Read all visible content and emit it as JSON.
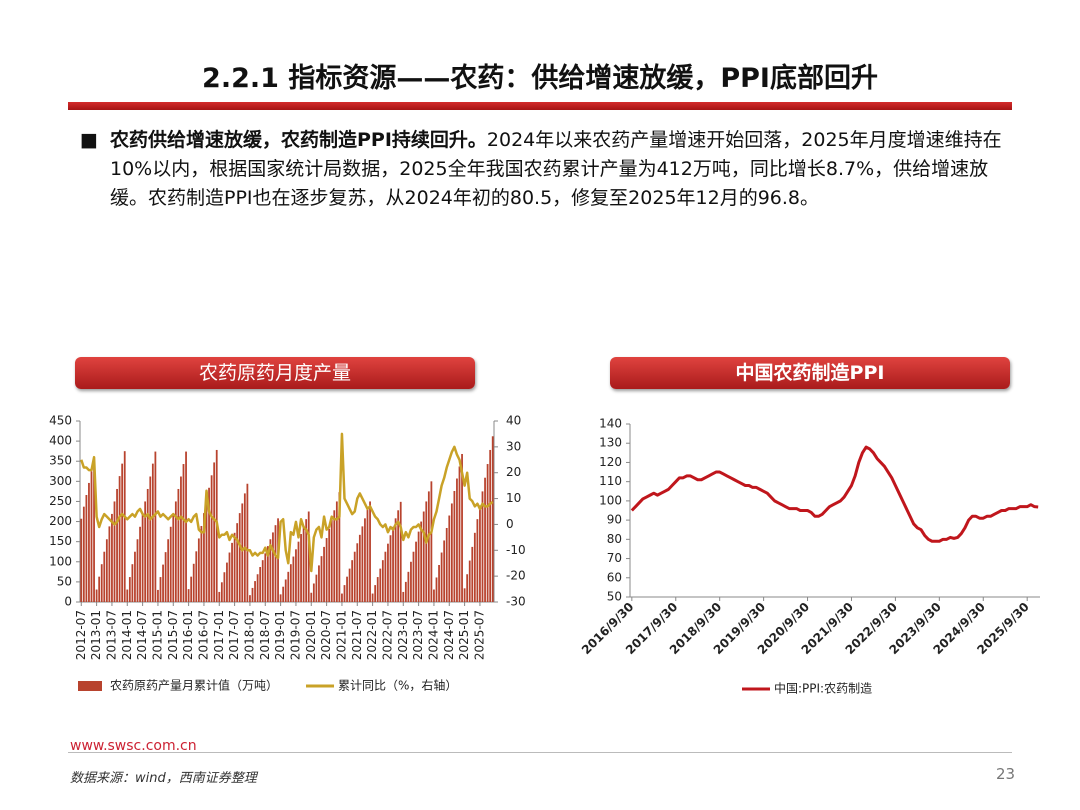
{
  "header": {
    "title": "2.2.1 指标资源——农药：供给增速放缓，PPI底部回升"
  },
  "bullet": {
    "bold": "农药供给增速放缓，农药制造PPI持续回升。",
    "text": "2024年以来农药产量增速开始回落，2025年月度增速维持在10%以内，根据国家统计局数据，2025全年我国农药累计产量为412万吨，同比增长8.7%，供给增速放缓。农药制造PPI也在逐步复苏，从2024年初的80.5，修复至2025年12月的96.8。"
  },
  "chart_data": [
    {
      "type": "combo",
      "title": "农药原药月度产量",
      "categories": [
        "2012-07",
        null,
        null,
        null,
        null,
        null,
        "2013-01",
        null,
        null,
        null,
        null,
        null,
        "2013-07",
        null,
        null,
        null,
        null,
        null,
        "2014-01",
        null,
        null,
        null,
        null,
        null,
        "2014-07",
        null,
        null,
        null,
        null,
        null,
        "2015-01",
        null,
        null,
        null,
        null,
        null,
        "2015-07",
        null,
        null,
        null,
        null,
        null,
        "2016-01",
        null,
        null,
        null,
        null,
        null,
        "2016-07",
        null,
        null,
        null,
        null,
        null,
        "2017-01",
        null,
        null,
        null,
        null,
        null,
        "2017-07",
        null,
        null,
        null,
        null,
        null,
        "2018-01",
        null,
        null,
        null,
        null,
        null,
        "2018-07",
        null,
        null,
        null,
        null,
        null,
        "2019-01",
        null,
        null,
        null,
        null,
        null,
        "2019-07",
        null,
        null,
        null,
        null,
        null,
        "2020-01",
        null,
        null,
        null,
        null,
        null,
        "2020-07",
        null,
        null,
        null,
        null,
        null,
        "2021-01",
        null,
        null,
        null,
        null,
        null,
        "2021-07",
        null,
        null,
        null,
        null,
        null,
        "2022-01",
        null,
        null,
        null,
        null,
        null,
        "2022-07",
        null,
        null,
        null,
        null,
        null,
        "2023-01",
        null,
        null,
        null,
        null,
        null,
        "2023-07",
        null,
        null,
        null,
        null,
        null,
        "2024-01",
        null,
        null,
        null,
        null,
        null,
        "2024-07",
        null,
        null,
        null,
        null,
        null,
        "2025-01",
        null,
        null,
        null,
        null,
        null,
        "2025-07",
        null,
        null,
        null,
        null,
        null
      ],
      "series": [
        {
          "name": "农药原药产量月累计值（万吨）",
          "type": "bar",
          "color": "#b8432e",
          "values": [
            207,
            237,
            266,
            296,
            325,
            355,
            31,
            63,
            94,
            125,
            156,
            188,
            219,
            250,
            281,
            313,
            344,
            375,
            31,
            62,
            94,
            125,
            156,
            187,
            219,
            250,
            281,
            312,
            344,
            374,
            30,
            62,
            93,
            124,
            156,
            187,
            218,
            250,
            281,
            312,
            343,
            374,
            32,
            63,
            95,
            126,
            158,
            189,
            221,
            252,
            284,
            315,
            347,
            378,
            25,
            49,
            74,
            98,
            123,
            147,
            172,
            196,
            221,
            245,
            270,
            294,
            17,
            35,
            52,
            69,
            87,
            104,
            121,
            139,
            156,
            173,
            191,
            208,
            19,
            38,
            56,
            75,
            94,
            113,
            131,
            150,
            169,
            188,
            206,
            225,
            23,
            46,
            68,
            91,
            114,
            137,
            159,
            182,
            205,
            228,
            250,
            273,
            21,
            42,
            63,
            83,
            104,
            125,
            146,
            167,
            188,
            208,
            229,
            250,
            21,
            42,
            62,
            83,
            104,
            125,
            145,
            166,
            187,
            208,
            228,
            249,
            25,
            50,
            75,
            100,
            125,
            150,
            175,
            200,
            225,
            250,
            275,
            300,
            31,
            61,
            92,
            123,
            153,
            184,
            215,
            245,
            276,
            307,
            337,
            368,
            34,
            69,
            103,
            137,
            172,
            206,
            240,
            275,
            309,
            343,
            378,
            412
          ]
        },
        {
          "name": "累计同比（%，右轴）",
          "type": "line",
          "axis": "y2",
          "color": "#c9a227",
          "values": [
            25,
            22,
            22,
            21,
            21,
            26,
            3,
            -1,
            2,
            4,
            3,
            2,
            1,
            0,
            1,
            3,
            4,
            3,
            2,
            3,
            4,
            3,
            5,
            6,
            4,
            3,
            4,
            2,
            3,
            4,
            5,
            3,
            4,
            3,
            2,
            3,
            4,
            3,
            2,
            3,
            2,
            1,
            2,
            1,
            3,
            4,
            -2,
            -3,
            -3,
            13,
            5,
            3,
            2,
            1,
            -5,
            -4,
            -4,
            -3,
            -6,
            -4,
            -5,
            -6,
            -8,
            -10,
            -9,
            -10,
            -10,
            -12,
            -11,
            -12,
            -11,
            -11,
            -9,
            -12,
            -8,
            -10,
            -12,
            -13,
            1,
            2,
            -10,
            -15,
            -3,
            -4,
            1,
            -5,
            2,
            -1,
            -2,
            -4,
            -18,
            -5,
            -2,
            -1,
            -5,
            3,
            -2,
            -1,
            3,
            2,
            2,
            3,
            35,
            10,
            8,
            6,
            4,
            5,
            10,
            12,
            10,
            8,
            6,
            7,
            5,
            3,
            2,
            0,
            -1,
            0,
            -3,
            -1,
            -2,
            0,
            1,
            -1,
            -6,
            -3,
            -5,
            -2,
            -1,
            -1,
            0,
            -2,
            -3,
            -7,
            -4,
            -3,
            2,
            5,
            10,
            15,
            18,
            22,
            25,
            28,
            30,
            27,
            25,
            20,
            15,
            20,
            10,
            9,
            7,
            8,
            6,
            8,
            7,
            7,
            8,
            8.7
          ]
        }
      ],
      "ylim": [
        0,
        450
      ],
      "yticks": [
        0,
        50,
        100,
        150,
        200,
        250,
        300,
        350,
        400,
        450
      ],
      "y2lim": [
        -30,
        40
      ],
      "y2ticks": [
        -30,
        -20,
        -10,
        0,
        10,
        20,
        30,
        40
      ],
      "grid": false,
      "legend": "bottom"
    },
    {
      "type": "line",
      "title": "中国农药制造PPI",
      "categories": [
        "2016/9/30",
        null,
        null,
        null,
        null,
        null,
        null,
        null,
        null,
        null,
        null,
        null,
        "2017/9/30",
        null,
        null,
        null,
        null,
        null,
        null,
        null,
        null,
        null,
        null,
        null,
        "2018/9/30",
        null,
        null,
        null,
        null,
        null,
        null,
        null,
        null,
        null,
        null,
        null,
        "2019/9/30",
        null,
        null,
        null,
        null,
        null,
        null,
        null,
        null,
        null,
        null,
        null,
        "2020/9/30",
        null,
        null,
        null,
        null,
        null,
        null,
        null,
        null,
        null,
        null,
        null,
        "2021/9/30",
        null,
        null,
        null,
        null,
        null,
        null,
        null,
        null,
        null,
        null,
        null,
        "2022/9/30",
        null,
        null,
        null,
        null,
        null,
        null,
        null,
        null,
        null,
        null,
        null,
        "2023/9/30",
        null,
        null,
        null,
        null,
        null,
        null,
        null,
        null,
        null,
        null,
        null,
        "2024/9/30",
        null,
        null,
        null,
        null,
        null,
        null,
        null,
        null,
        null,
        null,
        null,
        "2025/9/30",
        null,
        null,
        null
      ],
      "series": [
        {
          "name": "中国:PPI:农药制造",
          "color": "#c0161c",
          "values": [
            95,
            97,
            99,
            101,
            102,
            103,
            104,
            103,
            104,
            105,
            106,
            108,
            110,
            112,
            112,
            113,
            113,
            112,
            111,
            111,
            112,
            113,
            114,
            115,
            115,
            114,
            113,
            112,
            111,
            110,
            109,
            108,
            108,
            107,
            107,
            106,
            105,
            104,
            102,
            100,
            99,
            98,
            97,
            96,
            96,
            96,
            95,
            95,
            95,
            94,
            92,
            92,
            93,
            95,
            97,
            98,
            99,
            100,
            102,
            105,
            108,
            113,
            120,
            125,
            128,
            127,
            125,
            122,
            120,
            118,
            115,
            112,
            108,
            104,
            100,
            96,
            92,
            88,
            86,
            85,
            82,
            80,
            79,
            79,
            79,
            80,
            80,
            81,
            80.5,
            81,
            83,
            86,
            90,
            92,
            92,
            91,
            91,
            92,
            92,
            93,
            94,
            95,
            95,
            96,
            96,
            96,
            97,
            97,
            97,
            98,
            97,
            96.8
          ]
        }
      ],
      "ylim": [
        50,
        140
      ],
      "yticks": [
        50,
        60,
        70,
        80,
        90,
        100,
        110,
        120,
        130,
        140
      ],
      "grid": false,
      "legend": "bottom"
    }
  ],
  "footer": {
    "url": "www.swsc.com.cn",
    "source": "数据来源：wind，西南证券整理",
    "page": "23"
  }
}
